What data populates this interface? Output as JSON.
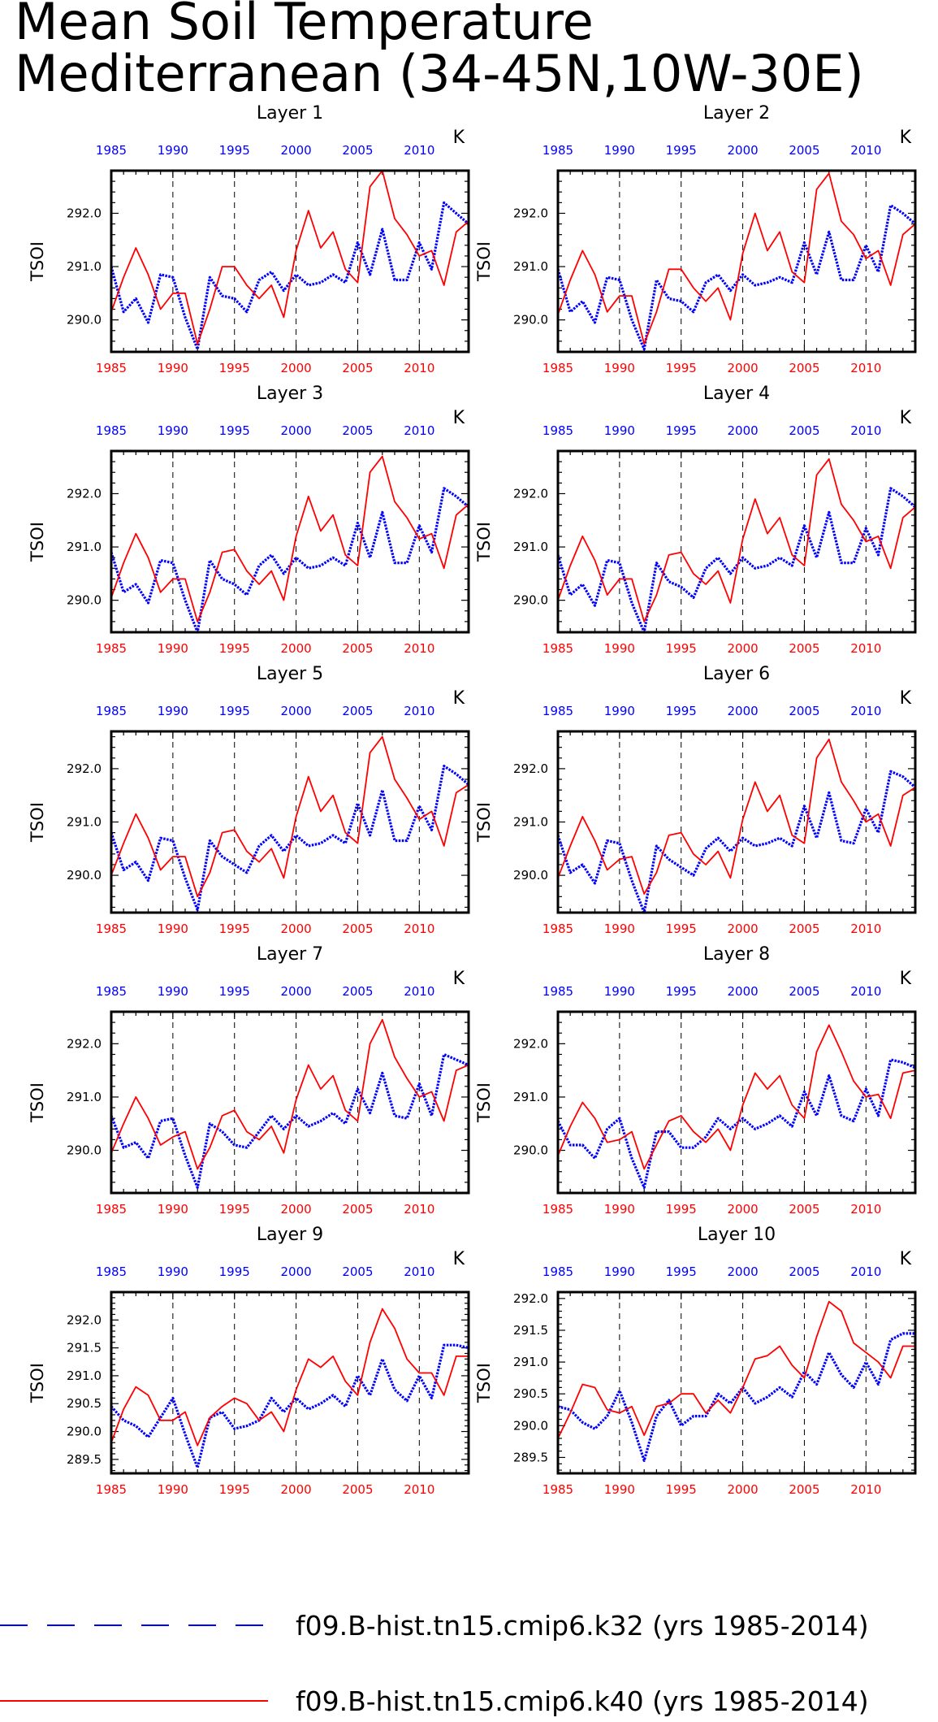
{
  "colors": {
    "blue": "#0000ff",
    "red": "#ff0000",
    "axis": "#000000",
    "grid": "#000000"
  },
  "chart_data": {
    "type": "line",
    "title": [
      "Mean Soil Temperature",
      "Mediterranean (34-45N,10W-30E)"
    ],
    "unit": "K",
    "ylabel": "TSOI",
    "xlim": [
      1985,
      2014
    ],
    "xticks": [
      1985,
      1990,
      1995,
      2000,
      2005,
      2010
    ],
    "xgrid": [
      1990,
      1995,
      2000,
      2005,
      2010
    ],
    "legend": [
      {
        "label": "f09.B-hist.tn15.cmip6.k32 (yrs 1985-2014)",
        "color": "#0000ff",
        "style": "dashed"
      },
      {
        "label": "f09.B-hist.tn15.cmip6.k40 (yrs 1985-2014)",
        "color": "#ff0000",
        "style": "solid"
      }
    ],
    "panels": [
      {
        "name": "Layer 1",
        "ylim": [
          289.4,
          292.8
        ],
        "yticks": [
          "290.0",
          "291.0",
          "292.0"
        ],
        "series": [
          {
            "key": "k32",
            "values": [
              291.0,
              290.15,
              290.4,
              289.95,
              290.85,
              290.8,
              290.05,
              289.45,
              290.8,
              290.45,
              290.4,
              290.15,
              290.75,
              290.9,
              290.55,
              290.85,
              290.65,
              290.7,
              290.85,
              290.7,
              291.45,
              290.85,
              291.7,
              290.75,
              290.75,
              291.45,
              290.95,
              292.2,
              292.0,
              291.8
            ]
          },
          {
            "key": "k40",
            "values": [
              290.15,
              290.8,
              291.35,
              290.85,
              290.2,
              290.5,
              290.5,
              289.55,
              290.2,
              291.0,
              291.0,
              290.65,
              290.4,
              290.65,
              290.05,
              291.3,
              292.05,
              291.35,
              291.65,
              290.95,
              290.7,
              292.5,
              292.8,
              291.9,
              291.6,
              291.2,
              291.3,
              290.65,
              291.65,
              291.85
            ]
          }
        ]
      },
      {
        "name": "Layer 2",
        "ylim": [
          289.4,
          292.8
        ],
        "yticks": [
          "290.0",
          "291.0",
          "292.0"
        ],
        "series": [
          {
            "key": "k32",
            "values": [
              290.95,
              290.15,
              290.35,
              289.95,
              290.8,
              290.75,
              290.0,
              289.45,
              290.75,
              290.4,
              290.35,
              290.15,
              290.7,
              290.85,
              290.55,
              290.85,
              290.65,
              290.7,
              290.8,
              290.7,
              291.45,
              290.85,
              291.65,
              290.75,
              290.75,
              291.4,
              290.9,
              292.15,
              292.0,
              291.8
            ]
          },
          {
            "key": "k40",
            "values": [
              290.1,
              290.75,
              291.3,
              290.85,
              290.15,
              290.45,
              290.45,
              289.55,
              290.15,
              290.95,
              290.95,
              290.6,
              290.35,
              290.6,
              290.0,
              291.25,
              292.0,
              291.3,
              291.65,
              290.9,
              290.7,
              292.45,
              292.75,
              291.85,
              291.6,
              291.15,
              291.3,
              290.65,
              291.6,
              291.8
            ]
          }
        ]
      },
      {
        "name": "Layer 3",
        "ylim": [
          289.4,
          292.8
        ],
        "yticks": [
          "290.0",
          "291.0",
          "292.0"
        ],
        "series": [
          {
            "key": "k32",
            "values": [
              290.9,
              290.15,
              290.3,
              289.95,
              290.75,
              290.7,
              290.0,
              289.4,
              290.75,
              290.4,
              290.3,
              290.1,
              290.65,
              290.85,
              290.5,
              290.8,
              290.6,
              290.65,
              290.8,
              290.65,
              291.45,
              290.8,
              291.65,
              290.7,
              290.7,
              291.4,
              290.9,
              292.1,
              291.95,
              291.75
            ]
          },
          {
            "key": "k40",
            "values": [
              290.05,
              290.7,
              291.25,
              290.8,
              290.15,
              290.4,
              290.4,
              289.6,
              290.15,
              290.9,
              290.95,
              290.55,
              290.3,
              290.55,
              290.0,
              291.2,
              291.95,
              291.3,
              291.6,
              290.85,
              290.65,
              292.4,
              292.7,
              291.85,
              291.55,
              291.15,
              291.25,
              290.6,
              291.6,
              291.8
            ]
          }
        ]
      },
      {
        "name": "Layer 4",
        "ylim": [
          289.4,
          292.8
        ],
        "yticks": [
          "290.0",
          "291.0",
          "292.0"
        ],
        "series": [
          {
            "key": "k32",
            "values": [
              290.85,
              290.1,
              290.3,
              289.9,
              290.75,
              290.7,
              289.95,
              289.4,
              290.7,
              290.35,
              290.25,
              290.05,
              290.6,
              290.8,
              290.5,
              290.8,
              290.6,
              290.65,
              290.8,
              290.65,
              291.4,
              290.8,
              291.65,
              290.7,
              290.7,
              291.35,
              290.85,
              292.1,
              291.95,
              291.75
            ]
          },
          {
            "key": "k40",
            "values": [
              290.0,
              290.65,
              291.2,
              290.75,
              290.1,
              290.4,
              290.4,
              289.6,
              290.1,
              290.85,
              290.9,
              290.5,
              290.3,
              290.55,
              289.95,
              291.15,
              291.9,
              291.25,
              291.55,
              290.85,
              290.65,
              292.35,
              292.65,
              291.8,
              291.5,
              291.1,
              291.2,
              290.6,
              291.55,
              291.75
            ]
          }
        ]
      },
      {
        "name": "Layer 5",
        "ylim": [
          289.3,
          292.7
        ],
        "yticks": [
          "290.0",
          "291.0",
          "292.0"
        ],
        "series": [
          {
            "key": "k32",
            "values": [
              290.8,
              290.1,
              290.25,
              289.9,
              290.7,
              290.65,
              289.95,
              289.35,
              290.65,
              290.35,
              290.2,
              290.05,
              290.55,
              290.75,
              290.45,
              290.75,
              290.55,
              290.6,
              290.75,
              290.6,
              291.35,
              290.75,
              291.6,
              290.65,
              290.65,
              291.3,
              290.85,
              292.05,
              291.9,
              291.7
            ]
          },
          {
            "key": "k40",
            "values": [
              290.0,
              290.6,
              291.15,
              290.7,
              290.1,
              290.35,
              290.35,
              289.6,
              290.05,
              290.8,
              290.85,
              290.45,
              290.25,
              290.5,
              289.95,
              291.1,
              291.85,
              291.2,
              291.5,
              290.8,
              290.6,
              292.3,
              292.6,
              291.8,
              291.45,
              291.05,
              291.2,
              290.55,
              291.55,
              291.7
            ]
          }
        ]
      },
      {
        "name": "Layer 6",
        "ylim": [
          289.3,
          292.7
        ],
        "yticks": [
          "290.0",
          "291.0",
          "292.0"
        ],
        "series": [
          {
            "key": "k32",
            "values": [
              290.75,
              290.05,
              290.2,
              289.85,
              290.65,
              290.6,
              289.9,
              289.3,
              290.55,
              290.3,
              290.15,
              290.0,
              290.5,
              290.7,
              290.45,
              290.7,
              290.55,
              290.6,
              290.7,
              290.55,
              291.3,
              290.7,
              291.55,
              290.65,
              290.6,
              291.25,
              290.8,
              291.95,
              291.85,
              291.65
            ]
          },
          {
            "key": "k40",
            "values": [
              289.95,
              290.55,
              291.1,
              290.65,
              290.1,
              290.3,
              290.35,
              289.65,
              290.05,
              290.75,
              290.8,
              290.4,
              290.2,
              290.45,
              289.95,
              291.05,
              291.75,
              291.2,
              291.5,
              290.75,
              290.6,
              292.2,
              292.55,
              291.75,
              291.4,
              291.0,
              291.15,
              290.55,
              291.5,
              291.65
            ]
          }
        ]
      },
      {
        "name": "Layer 7",
        "ylim": [
          289.2,
          292.6
        ],
        "yticks": [
          "290.0",
          "291.0",
          "292.0"
        ],
        "series": [
          {
            "key": "k32",
            "values": [
              290.65,
              290.05,
              290.15,
              289.85,
              290.55,
              290.6,
              289.9,
              289.3,
              290.5,
              290.35,
              290.1,
              290.05,
              290.35,
              290.65,
              290.4,
              290.65,
              290.45,
              290.55,
              290.7,
              290.5,
              291.15,
              290.7,
              291.45,
              290.65,
              290.6,
              291.25,
              290.65,
              291.8,
              291.7,
              291.6
            ]
          },
          {
            "key": "k40",
            "values": [
              289.95,
              290.5,
              291.0,
              290.6,
              290.1,
              290.25,
              290.35,
              289.65,
              290.05,
              290.65,
              290.75,
              290.35,
              290.2,
              290.45,
              289.95,
              290.95,
              291.6,
              291.15,
              291.4,
              290.75,
              290.55,
              292.0,
              292.45,
              291.75,
              291.35,
              291.0,
              291.1,
              290.55,
              291.5,
              291.6
            ]
          }
        ]
      },
      {
        "name": "Layer 8",
        "ylim": [
          289.2,
          292.6
        ],
        "yticks": [
          "290.0",
          "291.0",
          "292.0"
        ],
        "series": [
          {
            "key": "k32",
            "values": [
              290.55,
              290.1,
              290.1,
              289.85,
              290.4,
              290.6,
              289.85,
              289.3,
              290.35,
              290.35,
              290.05,
              290.05,
              290.25,
              290.6,
              290.4,
              290.6,
              290.4,
              290.5,
              290.65,
              290.45,
              291.1,
              290.65,
              291.4,
              290.65,
              290.55,
              291.15,
              290.65,
              291.7,
              291.65,
              291.55
            ]
          },
          {
            "key": "k40",
            "values": [
              289.9,
              290.45,
              290.9,
              290.6,
              290.15,
              290.2,
              290.35,
              289.65,
              290.1,
              290.55,
              290.65,
              290.35,
              290.15,
              290.4,
              290.0,
              290.85,
              291.45,
              291.15,
              291.4,
              290.85,
              290.6,
              291.85,
              292.35,
              291.85,
              291.3,
              291.0,
              291.05,
              290.6,
              291.45,
              291.5
            ]
          }
        ]
      },
      {
        "name": "Layer 9",
        "ylim": [
          289.25,
          292.5
        ],
        "yticks": [
          "289.5",
          "290.0",
          "290.5",
          "291.0",
          "291.5",
          "292.0"
        ],
        "series": [
          {
            "key": "k32",
            "values": [
              290.45,
              290.2,
              290.1,
              289.9,
              290.25,
              290.6,
              289.95,
              289.35,
              290.25,
              290.35,
              290.05,
              290.1,
              290.2,
              290.6,
              290.35,
              290.6,
              290.4,
              290.5,
              290.65,
              290.45,
              291.0,
              290.65,
              291.3,
              290.75,
              290.55,
              291.0,
              290.6,
              291.55,
              291.55,
              291.5
            ]
          },
          {
            "key": "k40",
            "values": [
              289.8,
              290.4,
              290.8,
              290.65,
              290.2,
              290.2,
              290.35,
              289.75,
              290.25,
              290.45,
              290.6,
              290.5,
              290.2,
              290.35,
              290.0,
              290.75,
              291.3,
              291.15,
              291.35,
              290.9,
              290.65,
              291.6,
              292.2,
              291.85,
              291.3,
              291.05,
              291.05,
              290.65,
              291.35,
              291.35
            ]
          }
        ]
      },
      {
        "name": "Layer 10",
        "ylim": [
          289.25,
          292.1
        ],
        "yticks": [
          "289.5",
          "290.0",
          "290.5",
          "291.0",
          "291.5",
          "292.0"
        ],
        "series": [
          {
            "key": "k32",
            "values": [
              290.3,
              290.25,
              290.05,
              289.95,
              290.15,
              290.55,
              290.05,
              289.45,
              290.15,
              290.4,
              290.0,
              290.15,
              290.15,
              290.5,
              290.35,
              290.6,
              290.35,
              290.45,
              290.6,
              290.45,
              290.85,
              290.65,
              291.15,
              290.8,
              290.6,
              291.0,
              290.65,
              291.35,
              291.45,
              291.45
            ]
          },
          {
            "key": "k40",
            "values": [
              289.8,
              290.2,
              290.65,
              290.6,
              290.25,
              290.2,
              290.3,
              289.85,
              290.3,
              290.35,
              290.5,
              290.5,
              290.2,
              290.4,
              290.2,
              290.6,
              291.05,
              291.1,
              291.25,
              290.95,
              290.75,
              291.4,
              291.95,
              291.8,
              291.3,
              291.15,
              291.0,
              290.75,
              291.25,
              291.25
            ]
          }
        ]
      }
    ]
  }
}
